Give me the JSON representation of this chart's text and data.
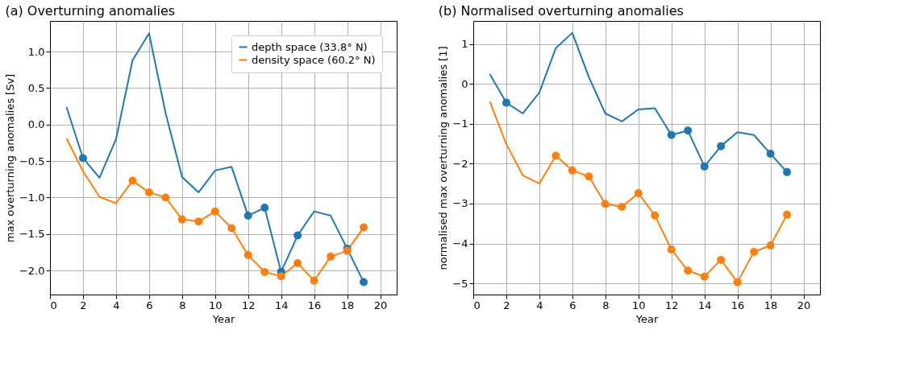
{
  "chart_data": [
    {
      "type": "line",
      "title": "(a) Overturning anomalies",
      "xlabel": "Year",
      "ylabel": "max overturning anomalies [Sv]",
      "x": [
        1,
        2,
        3,
        4,
        5,
        6,
        7,
        8,
        9,
        10,
        11,
        12,
        13,
        14,
        15,
        16,
        17,
        18,
        19
      ],
      "series": [
        {
          "name": "depth space (33.8° N)",
          "color": "#1f77b4",
          "values": [
            0.24,
            -0.46,
            -0.73,
            -0.2,
            0.88,
            1.25,
            0.16,
            -0.72,
            -0.93,
            -0.63,
            -0.58,
            -1.25,
            -1.14,
            -2.02,
            -1.52,
            -1.19,
            -1.25,
            -1.7,
            -2.16
          ]
        },
        {
          "name": "density space (60.2° N)",
          "color": "#ff7f0e",
          "values": [
            -0.19,
            -0.64,
            -0.99,
            -1.08,
            -0.77,
            -0.93,
            -1.0,
            -1.3,
            -1.33,
            -1.19,
            -1.42,
            -1.79,
            -2.02,
            -2.08,
            -1.9,
            -2.14,
            -1.81,
            -1.73,
            -1.41
          ]
        },
        {
          "type": "scatter",
          "marker": "circle",
          "color": "#1f77b4",
          "x": [
            2,
            12,
            13,
            14,
            15,
            18,
            19
          ],
          "values": [
            -0.46,
            -1.25,
            -1.14,
            -2.02,
            -1.52,
            -1.7,
            -2.16
          ]
        },
        {
          "type": "scatter",
          "marker": "circle",
          "color": "#ff7f0e",
          "x": [
            5,
            6,
            7,
            8,
            9,
            10,
            11,
            12,
            13,
            14,
            15,
            16,
            17,
            18,
            19
          ],
          "values": [
            -0.77,
            -0.93,
            -1.0,
            -1.3,
            -1.33,
            -1.19,
            -1.42,
            -1.79,
            -2.02,
            -2.08,
            -1.9,
            -2.14,
            -1.81,
            -1.73,
            -1.41
          ]
        }
      ],
      "xlim": [
        0,
        21
      ],
      "xticks": [
        0,
        2,
        4,
        6,
        8,
        10,
        12,
        14,
        16,
        18,
        20
      ],
      "ylim": [
        -2.33,
        1.42
      ],
      "yticks": [
        {
          "value": -2,
          "label": "−2.0"
        },
        {
          "value": -1.5,
          "label": "−1.5"
        },
        {
          "value": -1,
          "label": "−1.0"
        },
        {
          "value": -0.5,
          "label": "−0.5"
        },
        {
          "value": 0,
          "label": "0.0"
        },
        0.5,
        {
          "value": 1,
          "label": "1.0"
        }
      ],
      "grid": true,
      "legend": "top right",
      "marker": "none",
      "line_style": "solid"
    },
    {
      "type": "line",
      "title": "(b) Normalised overturning anomalies",
      "xlabel": "Year",
      "ylabel": "normalised max overturning anomalies [1]",
      "x": [
        1,
        2,
        3,
        4,
        5,
        6,
        7,
        8,
        9,
        10,
        11,
        12,
        13,
        14,
        15,
        16,
        17,
        18,
        19
      ],
      "series": [
        {
          "color": "#1f77b4",
          "values": [
            0.25,
            -0.47,
            -0.74,
            -0.22,
            0.9,
            1.28,
            0.17,
            -0.74,
            -0.94,
            -0.64,
            -0.61,
            -1.28,
            -1.17,
            -2.07,
            -1.56,
            -1.21,
            -1.28,
            -1.75,
            -2.21
          ]
        },
        {
          "color": "#ff7f0e",
          "values": [
            -0.44,
            -1.51,
            -2.29,
            -2.5,
            -1.8,
            -2.17,
            -2.32,
            -3.01,
            -3.08,
            -2.74,
            -3.3,
            -4.15,
            -4.68,
            -4.83,
            -4.41,
            -4.97,
            -4.21,
            -4.05,
            -3.28
          ]
        },
        {
          "type": "scatter",
          "marker": "circle",
          "color": "#1f77b4",
          "x": [
            2,
            12,
            13,
            14,
            15,
            18,
            19
          ],
          "values": [
            -0.47,
            -1.28,
            -1.17,
            -2.07,
            -1.56,
            -1.75,
            -2.21
          ]
        },
        {
          "type": "scatter",
          "marker": "circle",
          "color": "#ff7f0e",
          "x": [
            5,
            6,
            7,
            8,
            9,
            10,
            11,
            12,
            13,
            14,
            15,
            16,
            17,
            18,
            19
          ],
          "values": [
            -1.8,
            -2.17,
            -2.32,
            -3.01,
            -3.08,
            -2.74,
            -3.3,
            -4.15,
            -4.68,
            -4.83,
            -4.41,
            -4.97,
            -4.21,
            -4.05,
            -3.28
          ]
        }
      ],
      "xlim": [
        0,
        21
      ],
      "xticks": [
        0,
        2,
        4,
        6,
        8,
        10,
        12,
        14,
        16,
        18,
        20
      ],
      "ylim": [
        -5.28,
        1.58
      ],
      "yticks": [
        {
          "value": -5,
          "label": "−5"
        },
        {
          "value": -4,
          "label": "−4"
        },
        {
          "value": -3,
          "label": "−3"
        },
        {
          "value": -2,
          "label": "−2"
        },
        {
          "value": -1,
          "label": "−1"
        },
        0,
        1
      ],
      "grid": true,
      "marker": "none",
      "line_style": "solid"
    }
  ]
}
